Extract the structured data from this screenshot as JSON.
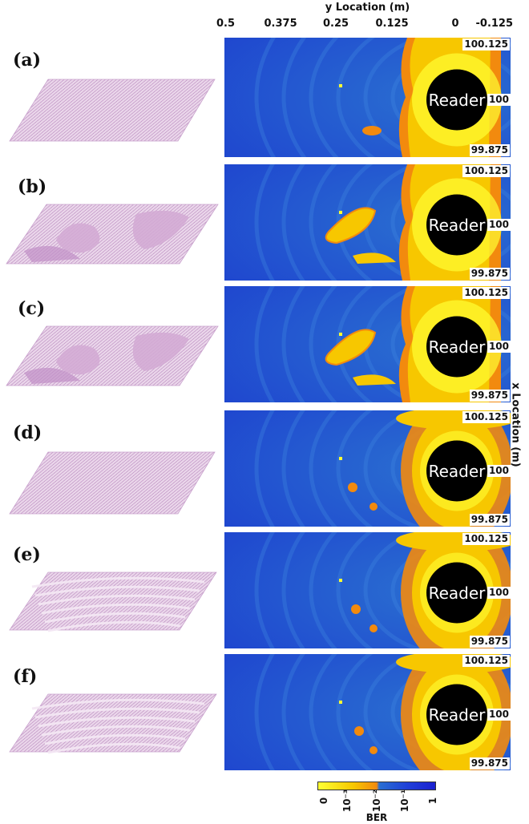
{
  "chart_data": {
    "type": "heatmap",
    "xlabel": "y Location (m)",
    "ylabel": "x Location (m)",
    "x_ticks": [
      "0.5",
      "0.375",
      "0.25",
      "0.125",
      "0",
      "-0.125"
    ],
    "y_ticks": [
      "100.125",
      "100",
      "99.875"
    ],
    "annotation": "Reader",
    "colorbar": {
      "title": "BER",
      "ticks": [
        "0",
        "10⁻³",
        "10⁻²",
        "10⁻¹",
        "1"
      ],
      "colors": [
        "#ffff33",
        "#f7c700",
        "#f28a0e",
        "#2a6fd1",
        "#1a20d0"
      ]
    },
    "panels": [
      {
        "label": "(a)",
        "pattern": "uniform"
      },
      {
        "label": "(b)",
        "pattern": "patched"
      },
      {
        "label": "(c)",
        "pattern": "patched"
      },
      {
        "label": "(d)",
        "pattern": "uniform"
      },
      {
        "label": "(e)",
        "pattern": "striped"
      },
      {
        "label": "(f)",
        "pattern": "striped"
      }
    ]
  }
}
